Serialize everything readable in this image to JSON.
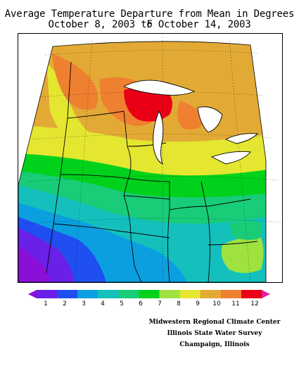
{
  "header": {
    "title_line1": "Average Temperature Departure from Mean in Degrees F",
    "title_line2": "October 8, 2003 to October 14, 2003"
  },
  "legend": {
    "labels": [
      "1",
      "2",
      "3",
      "4",
      "5",
      "6",
      "7",
      "8",
      "9",
      "10",
      "11",
      "12"
    ],
    "colors": [
      "#8b0fd8",
      "#6a20e8",
      "#1f4ff0",
      "#0b9fe0",
      "#14c0bc",
      "#18cc78",
      "#00d21c",
      "#9fe240",
      "#e4e630",
      "#e2aa35",
      "#ef8030",
      "#ea0016",
      "#ea1aa0"
    ]
  },
  "credits": {
    "line1": "Midwestern Regional Climate Center",
    "line2": "Illinois State Water Survey",
    "line3": "Champaign, Illinois"
  }
}
